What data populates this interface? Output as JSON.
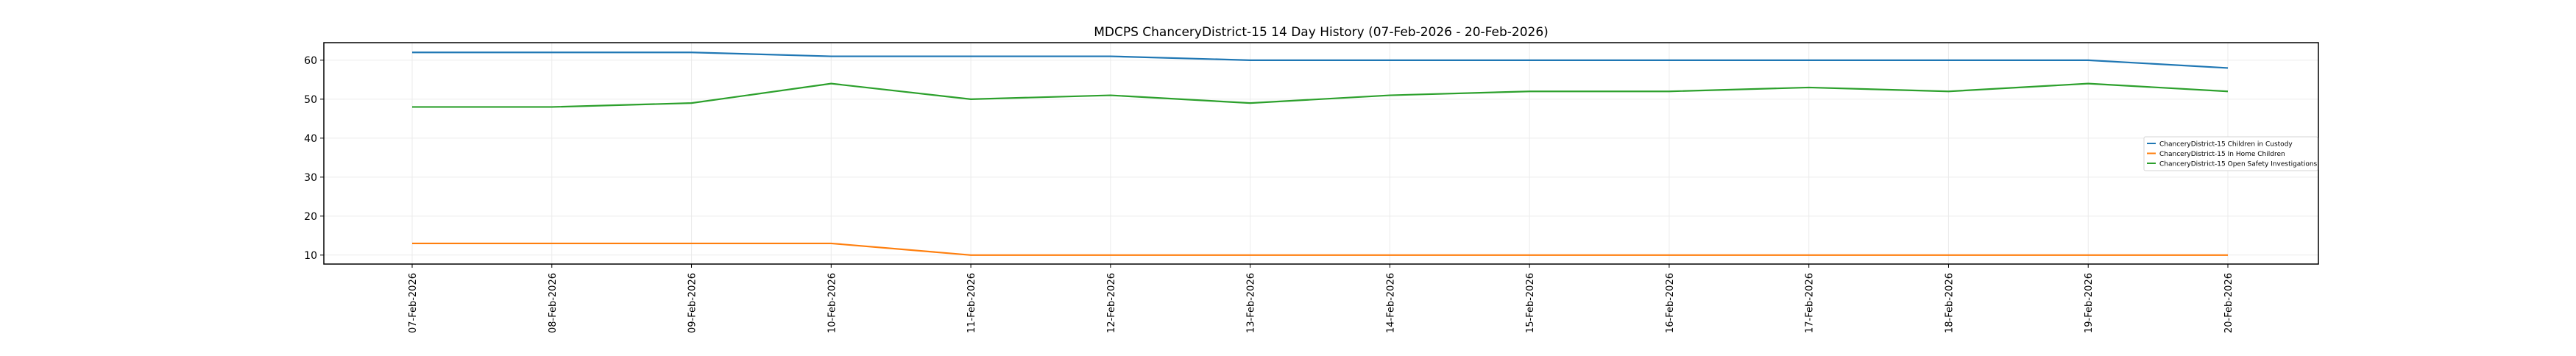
{
  "chart_data": {
    "type": "line",
    "title": "MDCPS ChanceryDistrict-15 14 Day History (07-Feb-2026 - 20-Feb-2026)",
    "xlabel": "",
    "ylabel": "",
    "categories": [
      "07-Feb-2026",
      "08-Feb-2026",
      "09-Feb-2026",
      "10-Feb-2026",
      "11-Feb-2026",
      "12-Feb-2026",
      "13-Feb-2026",
      "14-Feb-2026",
      "15-Feb-2026",
      "16-Feb-2026",
      "17-Feb-2026",
      "18-Feb-2026",
      "19-Feb-2026",
      "20-Feb-2026"
    ],
    "ylim": [
      7.7,
      64.5
    ],
    "yticks": [
      10,
      20,
      30,
      40,
      50,
      60
    ],
    "grid": true,
    "legend_position": "center-right",
    "series": [
      {
        "name": "ChanceryDistrict-15 Children in Custody",
        "color": "#1f77b4",
        "values": [
          62,
          62,
          62,
          61,
          61,
          61,
          60,
          60,
          60,
          60,
          60,
          60,
          60,
          58
        ]
      },
      {
        "name": "ChanceryDistrict-15 In Home Children",
        "color": "#ff7f0e",
        "values": [
          13,
          13,
          13,
          13,
          10,
          10,
          10,
          10,
          10,
          10,
          10,
          10,
          10,
          10
        ]
      },
      {
        "name": "ChanceryDistrict-15 Open Safety Investigations",
        "color": "#2ca02c",
        "values": [
          48,
          48,
          49,
          54,
          50,
          51,
          49,
          51,
          52,
          52,
          53,
          52,
          54,
          52
        ]
      }
    ]
  }
}
